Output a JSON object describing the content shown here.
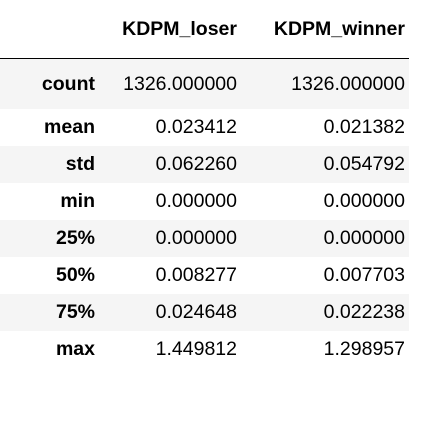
{
  "table": {
    "columns": [
      "KDPM_loser",
      "KDPM_winner"
    ],
    "rows": [
      {
        "label": "count",
        "values": [
          "1326.000000",
          "1326.000000"
        ]
      },
      {
        "label": "mean",
        "values": [
          "0.023412",
          "0.021382"
        ]
      },
      {
        "label": "std",
        "values": [
          "0.062260",
          "0.054792"
        ]
      },
      {
        "label": "min",
        "values": [
          "0.000000",
          "0.000000"
        ]
      },
      {
        "label": "25%",
        "values": [
          "0.000000",
          "0.000000"
        ]
      },
      {
        "label": "50%",
        "values": [
          "0.008277",
          "0.007703"
        ]
      },
      {
        "label": "75%",
        "values": [
          "0.024648",
          "0.022238"
        ]
      },
      {
        "label": "max",
        "values": [
          "1.449812",
          "1.298957"
        ]
      }
    ]
  },
  "colors": {
    "stripe": "#f5f5f5",
    "background": "#ffffff",
    "text": "#000000",
    "header_rule": "#000000"
  }
}
